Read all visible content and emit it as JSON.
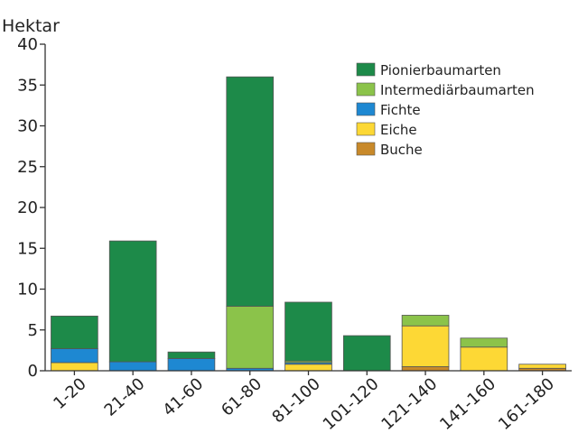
{
  "chart_data": {
    "type": "bar",
    "stacked": true,
    "ylabel": "Hektar",
    "xlabel": "",
    "title": "",
    "ylim": [
      0,
      40
    ],
    "yticks": [
      0,
      5,
      10,
      15,
      20,
      25,
      30,
      35,
      40
    ],
    "grid": false,
    "legend_position": "top-right",
    "categories": [
      "1-20",
      "21-40",
      "41-60",
      "61-80",
      "81-100",
      "101-120",
      "121-140",
      "141-160",
      "161-180"
    ],
    "series": [
      {
        "name": "Buche",
        "color": "#c8892a",
        "values": [
          0,
          0,
          0,
          0,
          0,
          0,
          0.5,
          0,
          0.3
        ]
      },
      {
        "name": "Eiche",
        "color": "#fdd835",
        "values": [
          1.0,
          0,
          0,
          0,
          0.8,
          0,
          5.0,
          2.9,
          0.5
        ]
      },
      {
        "name": "Fichte",
        "color": "#1e88d2",
        "values": [
          1.7,
          1.1,
          1.5,
          0.3,
          0.2,
          0,
          0,
          0,
          0
        ]
      },
      {
        "name": "Intermediärbaumarten",
        "color": "#8bc34a",
        "values": [
          0,
          0,
          0,
          7.6,
          0.2,
          0,
          1.3,
          1.1,
          0
        ]
      },
      {
        "name": "Pionierbaumarten",
        "color": "#1d8a49",
        "values": [
          4.0,
          14.8,
          0.8,
          28.1,
          7.2,
          4.3,
          0,
          0,
          0
        ]
      }
    ],
    "legend_order": [
      "Pionierbaumarten",
      "Intermediärbaumarten",
      "Fichte",
      "Eiche",
      "Buche"
    ]
  }
}
